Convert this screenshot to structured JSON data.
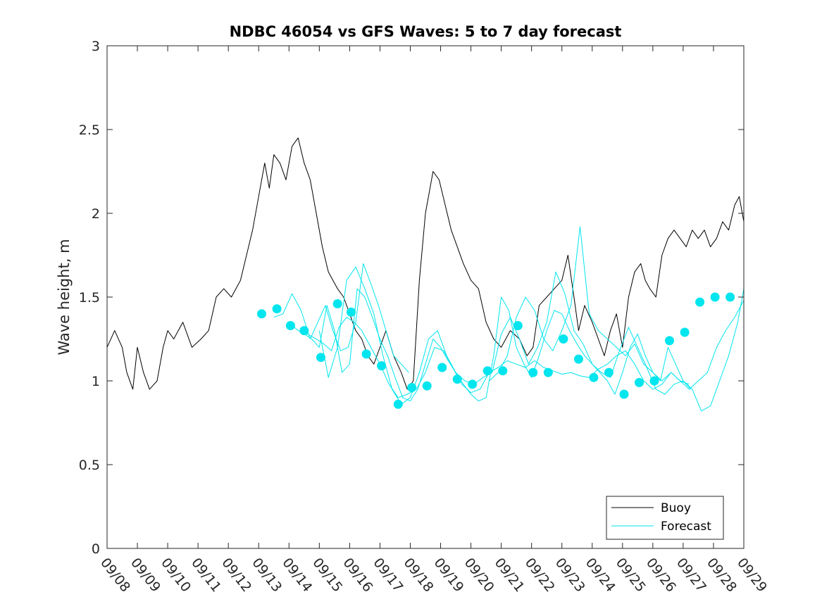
{
  "chart_data": {
    "type": "line",
    "title": "NDBC 46054 vs GFS Waves: 5 to 7 day forecast",
    "xlabel": "",
    "ylabel": "Wave height, m",
    "xlim": [
      0,
      21
    ],
    "ylim": [
      0,
      3
    ],
    "x_ticks": [
      "09/08",
      "09/09",
      "09/10",
      "09/11",
      "09/12",
      "09/13",
      "09/14",
      "09/15",
      "09/16",
      "09/17",
      "09/18",
      "09/19",
      "09/20",
      "09/21",
      "09/22",
      "09/23",
      "09/24",
      "09/25",
      "09/26",
      "09/27",
      "09/28",
      "09/29"
    ],
    "y_ticks": [
      0,
      0.5,
      1,
      1.5,
      2,
      2.5,
      3
    ],
    "y_tick_labels": [
      "0",
      "0.5",
      "1",
      "1.5",
      "2",
      "2.5",
      "3"
    ],
    "grid": false,
    "legend_position": "bottom-right",
    "colors": {
      "buoy": "#000000",
      "forecast": "#00e5ee"
    },
    "series": [
      {
        "name": "Buoy",
        "style": "line",
        "x": [
          0,
          0.25,
          0.5,
          0.65,
          0.85,
          1.0,
          1.2,
          1.4,
          1.65,
          1.85,
          2.0,
          2.2,
          2.5,
          2.8,
          3.1,
          3.35,
          3.6,
          3.85,
          4.1,
          4.4,
          4.6,
          4.8,
          5.0,
          5.2,
          5.35,
          5.5,
          5.7,
          5.9,
          6.1,
          6.3,
          6.5,
          6.7,
          6.9,
          7.1,
          7.3,
          7.45,
          7.6,
          7.8,
          8.0,
          8.2,
          8.4,
          8.6,
          8.8,
          9.0,
          9.2,
          9.45,
          9.7,
          9.9,
          10.1,
          10.3,
          10.5,
          10.75,
          10.95,
          11.15,
          11.35,
          11.55,
          11.75,
          12.0,
          12.25,
          12.5,
          12.75,
          13.0,
          13.3,
          13.6,
          13.85,
          14.05,
          14.25,
          14.5,
          14.75,
          15.0,
          15.2,
          15.4,
          15.55,
          15.75,
          16.0,
          16.2,
          16.4,
          16.6,
          16.8,
          17.0,
          17.2,
          17.4,
          17.6,
          17.75,
          17.9,
          18.1,
          18.3,
          18.5,
          18.7,
          18.9,
          19.1,
          19.3,
          19.5,
          19.7,
          19.9,
          20.1,
          20.3,
          20.5,
          20.7,
          20.85,
          21.0
        ],
        "y": [
          1.2,
          1.3,
          1.2,
          1.05,
          0.95,
          1.2,
          1.05,
          0.95,
          1.0,
          1.2,
          1.3,
          1.25,
          1.35,
          1.2,
          1.25,
          1.3,
          1.5,
          1.55,
          1.5,
          1.6,
          1.75,
          1.9,
          2.1,
          2.3,
          2.15,
          2.35,
          2.3,
          2.2,
          2.4,
          2.45,
          2.3,
          2.2,
          2.0,
          1.8,
          1.65,
          1.6,
          1.55,
          1.5,
          1.4,
          1.3,
          1.25,
          1.15,
          1.1,
          1.2,
          1.3,
          1.15,
          1.05,
          0.95,
          1.0,
          1.6,
          2.0,
          2.25,
          2.2,
          2.05,
          1.9,
          1.8,
          1.7,
          1.6,
          1.55,
          1.35,
          1.25,
          1.2,
          1.3,
          1.25,
          1.15,
          1.2,
          1.45,
          1.5,
          1.55,
          1.6,
          1.75,
          1.5,
          1.3,
          1.45,
          1.35,
          1.25,
          1.15,
          1.3,
          1.4,
          1.2,
          1.5,
          1.65,
          1.7,
          1.6,
          1.55,
          1.5,
          1.75,
          1.85,
          1.9,
          1.85,
          1.8,
          1.9,
          1.85,
          1.9,
          1.8,
          1.85,
          1.95,
          1.9,
          2.05,
          2.1,
          1.95
        ]
      },
      {
        "name": "Forecast",
        "style": "line",
        "segments": [
          {
            "x": [
              5.5,
              5.8,
              6.1,
              6.4,
              6.7,
              6.95,
              7.2,
              7.45,
              7.7,
              7.95,
              8.2,
              8.45,
              8.7,
              8.95,
              9.2,
              9.45,
              9.7,
              9.95
            ],
            "y": [
              1.38,
              1.4,
              1.52,
              1.42,
              1.25,
              1.35,
              1.45,
              1.3,
              1.18,
              1.2,
              1.35,
              1.7,
              1.58,
              1.45,
              1.3,
              1.15,
              1.1,
              1.05
            ]
          },
          {
            "x": [
              6.0,
              6.3,
              6.6,
              6.9,
              7.15,
              7.4,
              7.65,
              7.9,
              8.15,
              8.4,
              8.7,
              9.0,
              9.3,
              9.6,
              9.9,
              10.2,
              10.5,
              10.8,
              11.1,
              11.4,
              11.7,
              12.0,
              12.3,
              12.6,
              12.9,
              13.2,
              13.5,
              13.8,
              14.1,
              14.4,
              14.7,
              15.0,
              15.3,
              15.6,
              15.9,
              16.2,
              16.5,
              16.8,
              17.1,
              17.4,
              17.7,
              18.0,
              18.3,
              18.6,
              18.9,
              19.2,
              19.5,
              19.8,
              20.1,
              20.4,
              20.7,
              21.0
            ],
            "y": [
              1.35,
              1.3,
              1.28,
              1.25,
              1.22,
              1.18,
              1.32,
              1.38,
              1.35,
              1.3,
              1.2,
              1.1,
              0.98,
              0.9,
              0.92,
              0.95,
              1.05,
              1.2,
              1.18,
              1.08,
              0.98,
              0.93,
              0.95,
              1.05,
              1.08,
              1.12,
              1.1,
              1.08,
              1.12,
              1.08,
              1.06,
              1.04,
              1.05,
              1.03,
              1.02,
              1.07,
              1.1,
              1.15,
              1.18,
              1.1,
              1.0,
              0.95,
              0.98,
              1.05,
              1.0,
              0.95,
              1.0,
              1.05,
              1.2,
              1.3,
              1.38,
              1.48
            ]
          },
          {
            "x": [
              6.5,
              6.75,
              7.0,
              7.25,
              7.5,
              7.75,
              8.0,
              8.25,
              8.5,
              8.75,
              9.0,
              9.25,
              9.5,
              9.75,
              10.0,
              10.25,
              10.5,
              10.75,
              11.0,
              11.25,
              11.5,
              11.75,
              12.0,
              12.25,
              12.5,
              12.75,
              13.0,
              13.25,
              13.5,
              13.75,
              14.0,
              14.25,
              14.5,
              14.75,
              15.0,
              15.25,
              15.5,
              15.75,
              16.0,
              16.25,
              16.5,
              16.75,
              17.0,
              17.25,
              17.5,
              17.75,
              18.0,
              18.25,
              18.5,
              18.75,
              19.0,
              19.25
            ],
            "y": [
              1.28,
              1.25,
              1.2,
              1.45,
              1.3,
              1.05,
              1.1,
              1.55,
              1.5,
              1.38,
              1.25,
              1.15,
              1.02,
              0.9,
              0.88,
              0.95,
              1.1,
              1.25,
              1.2,
              1.12,
              1.05,
              0.98,
              0.92,
              0.88,
              0.9,
              1.15,
              1.5,
              1.42,
              1.2,
              1.1,
              1.02,
              1.15,
              1.3,
              1.42,
              1.4,
              1.3,
              1.22,
              1.15,
              1.1,
              1.05,
              1.0,
              0.92,
              1.05,
              1.2,
              1.28,
              1.15,
              1.05,
              1.0,
              1.2,
              1.1,
              1.0,
              0.95
            ]
          },
          {
            "x": [
              7.0,
              7.3,
              7.6,
              7.9,
              8.2,
              8.5,
              8.8,
              9.1,
              9.4,
              9.7,
              10.0,
              10.3,
              10.6,
              10.9,
              11.2,
              11.5,
              11.8,
              12.1,
              12.4,
              12.7,
              13.0,
              13.3,
              13.6,
              13.9,
              14.2,
              14.5,
              14.8,
              15.1,
              15.4,
              15.7,
              16.0,
              16.3,
              16.6,
              16.9,
              17.2,
              17.5,
              17.8,
              18.1,
              18.4,
              18.7,
              19.0,
              19.3,
              19.6,
              19.9,
              20.2,
              20.5,
              20.8,
              21.0
            ],
            "y": [
              1.3,
              1.02,
              1.2,
              1.6,
              1.68,
              1.55,
              1.4,
              1.15,
              0.95,
              0.86,
              0.9,
              1.05,
              1.25,
              1.3,
              1.15,
              1.05,
              1.0,
              0.98,
              1.02,
              1.05,
              1.28,
              1.38,
              1.25,
              1.1,
              1.2,
              1.35,
              1.65,
              1.52,
              1.3,
              1.22,
              1.1,
              1.05,
              1.02,
              1.18,
              1.32,
              1.2,
              1.08,
              0.95,
              0.92,
              0.98,
              1.0,
              0.95,
              0.82,
              0.85,
              1.0,
              1.15,
              1.35,
              1.55
            ]
          },
          {
            "x": [
              12.6,
              12.9,
              13.2,
              13.5,
              13.8,
              14.1,
              14.4,
              14.7,
              15.0,
              15.3,
              15.6,
              15.9,
              16.2,
              16.5,
              16.8,
              17.1,
              17.4,
              17.7,
              18.0,
              18.3,
              18.6,
              18.9,
              19.2
            ],
            "y": [
              1.0,
              1.05,
              1.15,
              1.38,
              1.5,
              1.42,
              1.25,
              1.18,
              1.3,
              1.45,
              1.92,
              1.4,
              1.3,
              1.25,
              1.2,
              1.15,
              1.22,
              1.1,
              1.05,
              1.0,
              1.05,
              1.0,
              0.98
            ]
          }
        ]
      },
      {
        "name": "Forecast markers",
        "style": "marker",
        "x": [
          5.1,
          5.6,
          6.05,
          6.5,
          7.05,
          7.6,
          8.05,
          8.55,
          9.05,
          9.6,
          10.05,
          10.55,
          11.05,
          11.55,
          12.05,
          12.55,
          13.05,
          13.55,
          14.05,
          14.55,
          15.05,
          15.55,
          16.05,
          16.55,
          17.05,
          17.55,
          18.05,
          18.55,
          19.05,
          19.55,
          20.05,
          20.55
        ],
        "y": [
          1.4,
          1.43,
          1.33,
          1.3,
          1.14,
          1.46,
          1.41,
          1.16,
          1.09,
          0.86,
          0.96,
          0.97,
          1.08,
          1.01,
          0.98,
          1.06,
          1.06,
          1.33,
          1.05,
          1.05,
          1.25,
          1.13,
          1.02,
          1.05,
          0.92,
          0.99,
          1.0,
          1.24,
          1.29,
          1.47,
          1.5,
          1.5
        ]
      }
    ],
    "legend": [
      "Buoy",
      "Forecast"
    ]
  }
}
